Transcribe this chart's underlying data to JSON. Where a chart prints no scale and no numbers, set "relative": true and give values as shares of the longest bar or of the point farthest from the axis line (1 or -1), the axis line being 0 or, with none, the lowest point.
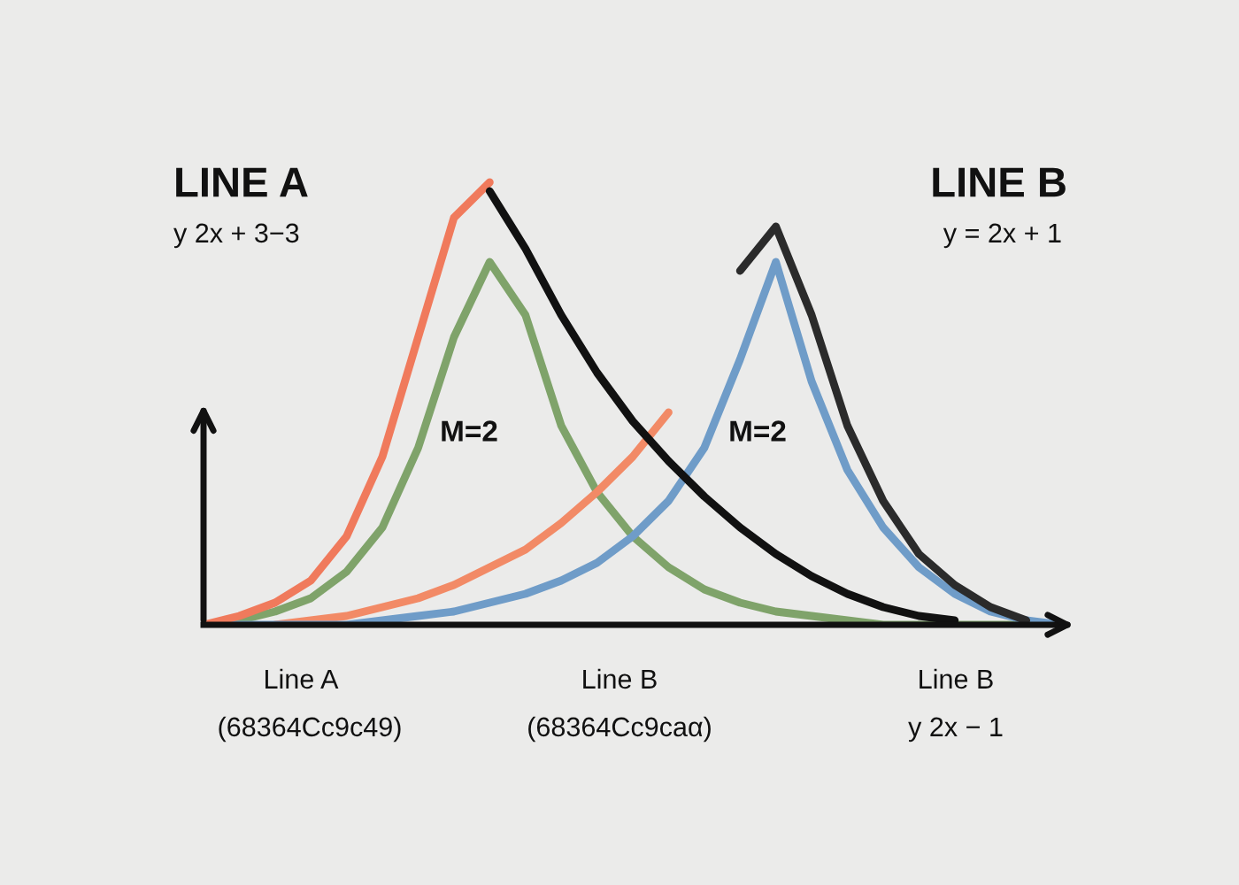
{
  "chart_data": {
    "type": "line",
    "relative": true,
    "legend": false,
    "tick_labels": false,
    "line_style": "solid",
    "annotations": [
      "LINE A",
      "y 2x + 3−3",
      "LINE B",
      "y = 2x + 1",
      "M=2",
      "M=2",
      "Line A",
      "(68364Cc9c49)",
      "Line B",
      "(68364Cc9caα)",
      "Line B",
      "y 2x − 1"
    ],
    "categories": [
      null,
      null,
      null,
      null,
      null,
      null,
      null,
      null,
      null,
      null,
      null,
      null,
      null,
      null,
      null,
      null,
      null,
      null,
      null,
      null,
      null,
      null,
      null,
      null,
      null
    ],
    "series": [
      {
        "color": "#7fa36a",
        "values": [
          0,
          0.01,
          0.03,
          0.06,
          0.12,
          0.22,
          0.4,
          0.65,
          0.82,
          0.7,
          0.45,
          0.3,
          0.2,
          0.13,
          0.08,
          0.05,
          0.03,
          0.02,
          0.01,
          0,
          0,
          0,
          0,
          0,
          0
        ]
      },
      {
        "color": "#f28a66",
        "values": [
          null,
          null,
          0,
          0.01,
          0.02,
          0.04,
          0.06,
          0.09,
          0.13,
          0.17,
          0.23,
          0.3,
          0.38,
          0.48,
          null,
          null,
          null,
          null,
          null,
          null,
          null,
          null,
          null,
          null,
          null
        ]
      },
      {
        "color": "#6f9cc8",
        "values": [
          0,
          0,
          0,
          0,
          0,
          0.01,
          0.02,
          0.03,
          0.05,
          0.07,
          0.1,
          0.14,
          0.2,
          0.28,
          0.4,
          0.6,
          0.82,
          0.55,
          0.35,
          0.22,
          0.13,
          0.07,
          0.03,
          0.01,
          0
        ]
      },
      {
        "color": "#2b2b2b",
        "values": [
          null,
          null,
          null,
          null,
          null,
          null,
          null,
          null,
          null,
          null,
          null,
          null,
          null,
          null,
          null,
          0.8,
          0.9,
          0.7,
          0.45,
          0.28,
          0.16,
          0.09,
          0.04,
          0.01,
          null
        ]
      },
      {
        "color": "#f07a5c",
        "values": [
          0,
          0.02,
          0.05,
          0.1,
          0.2,
          0.38,
          0.65,
          0.92,
          1,
          null,
          null,
          null,
          null,
          null,
          null,
          null,
          null,
          null,
          null,
          null,
          null,
          null,
          null,
          null,
          null
        ]
      },
      {
        "color": "#111111",
        "values": [
          null,
          null,
          null,
          null,
          null,
          null,
          null,
          null,
          0.98,
          0.85,
          0.7,
          0.57,
          0.46,
          0.37,
          0.29,
          0.22,
          0.16,
          0.11,
          0.07,
          0.04,
          0.02,
          0.01,
          null,
          null,
          null
        ]
      }
    ]
  }
}
